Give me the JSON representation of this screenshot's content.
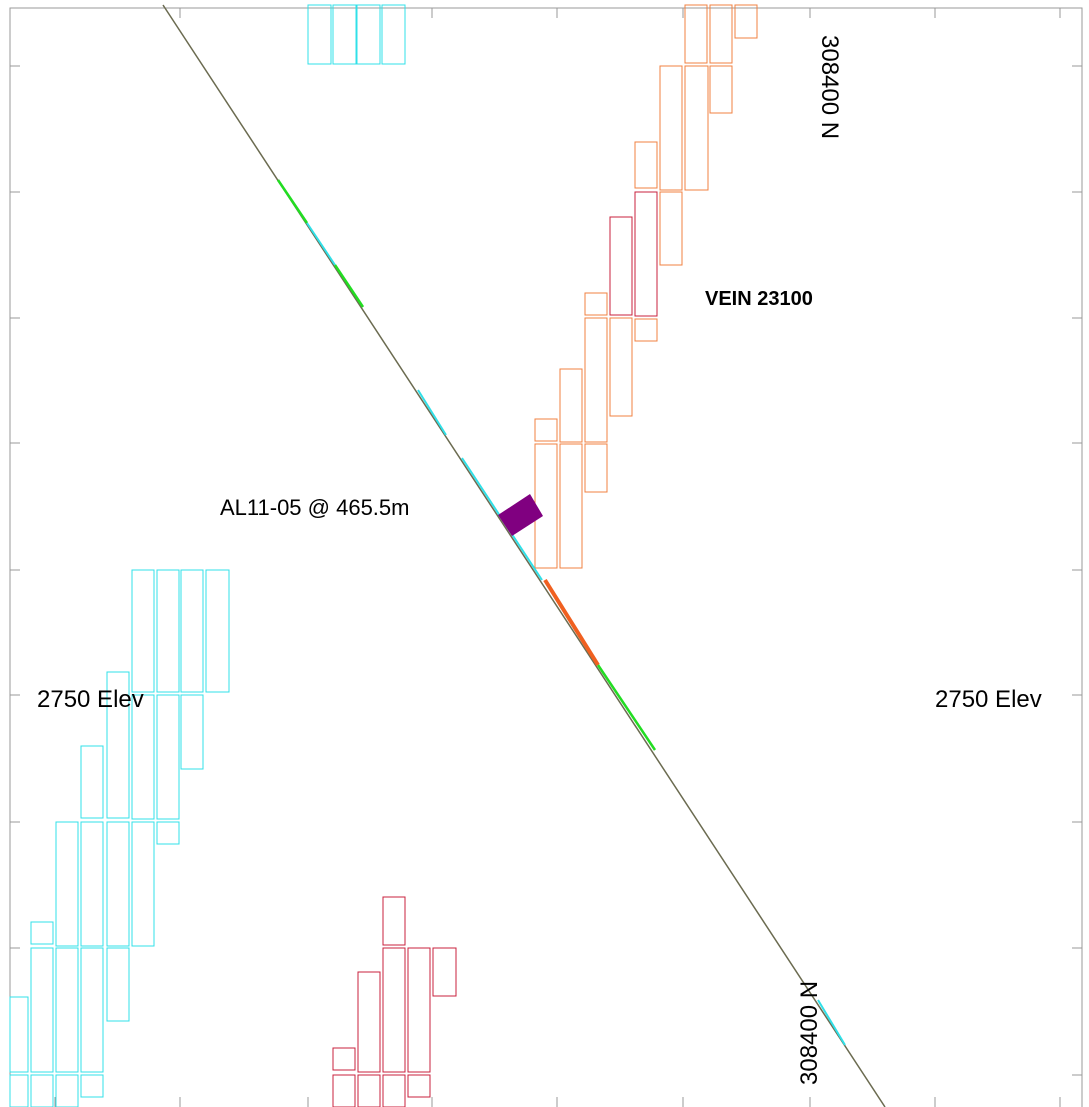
{
  "labels": {
    "northing_top": "308400 N",
    "northing_bottom": "308400 N",
    "elev_left": "2750 Elev",
    "elev_right": "2750 Elev",
    "vein": "VEIN 23100",
    "intercept": "AL11-05 @ 465.5m"
  }
}
